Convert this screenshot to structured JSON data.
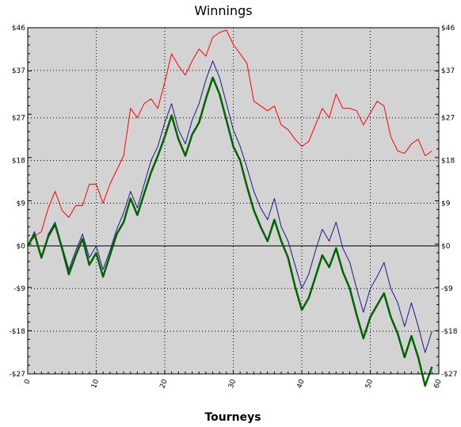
{
  "chart_data": {
    "type": "line",
    "title": "Winnings",
    "xlabel": "Tourneys",
    "ylabel": "",
    "xlim": [
      0,
      60
    ],
    "ylim": [
      -27,
      46
    ],
    "x_ticks": [
      0,
      10,
      20,
      30,
      40,
      50,
      60
    ],
    "x_tick_labels": [
      "0",
      "10",
      "20",
      "30",
      "40",
      "50",
      "60"
    ],
    "y_ticks": [
      46,
      37,
      27,
      18,
      9,
      0,
      -9,
      -18,
      -27
    ],
    "y_tick_labels": [
      "$46",
      "$37",
      "$27",
      "$18",
      "$9",
      "$0",
      "-$9",
      "-$18",
      "-$27"
    ],
    "grid": true,
    "background": "#d3d3d3",
    "series": [
      {
        "color": "#ff0000",
        "width": 1,
        "x": [
          0,
          1,
          2,
          3,
          4,
          5,
          6,
          7,
          8,
          9,
          10,
          11,
          12,
          13,
          14,
          15,
          16,
          17,
          18,
          19,
          20,
          21,
          22,
          23,
          24,
          25,
          26,
          27,
          28,
          29,
          30,
          31,
          32,
          33,
          34,
          35,
          36,
          37,
          38,
          39,
          40,
          41,
          42,
          43,
          44,
          45,
          46,
          47,
          48,
          49,
          50,
          51,
          52,
          53,
          54,
          55,
          56,
          57,
          58,
          59
        ],
        "values": [
          0,
          2,
          3,
          8,
          11.5,
          7.5,
          6,
          8.5,
          8.5,
          13,
          13,
          9,
          13,
          16,
          19,
          29,
          27,
          30,
          31,
          29,
          34.5,
          40.5,
          38,
          36,
          39,
          41.5,
          40,
          44,
          45,
          45.5,
          42.5,
          40.5,
          38.5,
          30.5,
          29.5,
          28.5,
          29.5,
          25.5,
          24.5,
          22.5,
          21,
          22,
          25.5,
          29,
          27,
          32,
          29,
          29,
          28.5,
          25.5,
          28,
          30.5,
          29.5,
          23,
          20,
          19.5,
          21.5,
          22.5,
          19,
          20
        ]
      },
      {
        "color": "#1a1a8c",
        "width": 1,
        "x": [
          0,
          1,
          2,
          3,
          4,
          5,
          6,
          7,
          8,
          9,
          10,
          11,
          12,
          13,
          14,
          15,
          16,
          17,
          18,
          19,
          20,
          21,
          22,
          23,
          24,
          25,
          26,
          27,
          28,
          29,
          30,
          31,
          32,
          33,
          34,
          35,
          36,
          37,
          38,
          39,
          40,
          41,
          42,
          43,
          44,
          45,
          46,
          47,
          48,
          49,
          50,
          51,
          52,
          53,
          54,
          55,
          56,
          57,
          58,
          59
        ],
        "values": [
          0,
          3,
          -2.5,
          2.5,
          5,
          0,
          -5,
          -1,
          2.5,
          -2.5,
          0,
          -5,
          -1,
          3.5,
          7,
          11.5,
          8,
          13,
          18,
          21,
          26,
          30,
          24.5,
          21.5,
          26.5,
          30,
          35,
          39,
          35.5,
          30,
          24.5,
          21,
          16.5,
          11.5,
          8,
          5.5,
          10,
          4,
          1,
          -4,
          -9,
          -6,
          -1,
          3.5,
          1,
          5,
          -0.5,
          -3.5,
          -9,
          -14,
          -9,
          -6.5,
          -3.5,
          -9,
          -12,
          -17,
          -12,
          -17,
          -22.5,
          -18
        ]
      },
      {
        "color": "#006400",
        "width": 2.5,
        "x": [
          0,
          1,
          2,
          3,
          4,
          5,
          6,
          7,
          8,
          9,
          10,
          11,
          12,
          13,
          14,
          15,
          16,
          17,
          18,
          19,
          20,
          21,
          22,
          23,
          24,
          25,
          26,
          27,
          28,
          29,
          30,
          31,
          32,
          33,
          34,
          35,
          36,
          37,
          38,
          39,
          40,
          41,
          42,
          43,
          44,
          45,
          46,
          47,
          48,
          49,
          50,
          51,
          52,
          53,
          54,
          55,
          56,
          57,
          58,
          59
        ],
        "values": [
          0,
          2.5,
          -2.5,
          2,
          4.5,
          -0.5,
          -6,
          -2,
          1.5,
          -4,
          -1.5,
          -6.5,
          -2,
          2.5,
          5,
          10,
          6.5,
          11,
          15.5,
          19,
          23,
          27.5,
          22.5,
          19,
          23.5,
          26,
          31,
          35.5,
          32,
          26.5,
          21,
          18,
          12.5,
          7.5,
          4,
          1,
          5.5,
          1,
          -2.5,
          -8.5,
          -13.5,
          -11,
          -6.5,
          -2,
          -4.5,
          -0.5,
          -5.5,
          -9,
          -14.5,
          -19.5,
          -15,
          -12.5,
          -10,
          -15,
          -18.5,
          -23.5,
          -19,
          -23.5,
          -29.5,
          -25.5
        ]
      }
    ]
  }
}
